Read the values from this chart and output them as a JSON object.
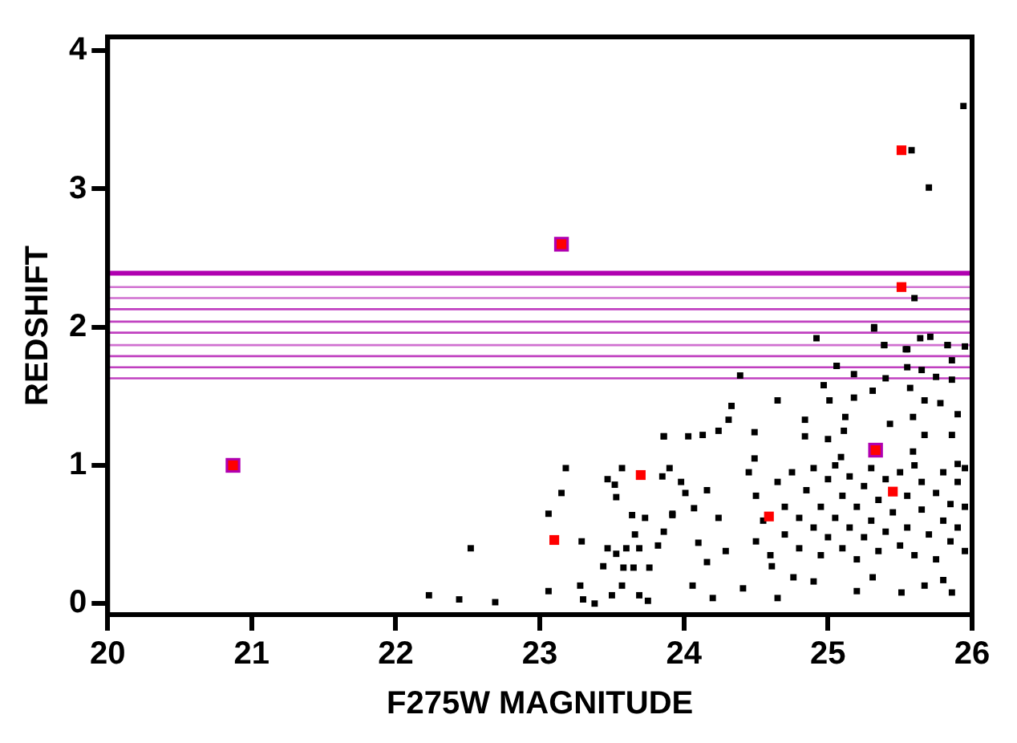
{
  "chart_data": {
    "type": "scatter",
    "xlabel": "F275W MAGNITUDE",
    "ylabel": "REDSHIFT",
    "xlim": [
      20,
      26
    ],
    "ylim": [
      -0.08,
      4.1
    ],
    "xticks": [
      20,
      21,
      22,
      23,
      24,
      25,
      26
    ],
    "yticks": [
      0,
      1,
      2,
      3,
      4
    ],
    "grid": false,
    "legend": false,
    "marker": "square",
    "series": [
      {
        "color": "#000000",
        "x": [
          22.23,
          22.44,
          22.69,
          22.52,
          23.06,
          23.06,
          23.15,
          23.18,
          23.29,
          23.28,
          23.3,
          23.38,
          23.44,
          23.47,
          23.53,
          23.47,
          23.52,
          23.53,
          23.57,
          23.57,
          23.5,
          23.6,
          23.58,
          23.65,
          23.76,
          23.69,
          23.66,
          23.64,
          23.73,
          23.86,
          23.85,
          23.9,
          23.92,
          23.86,
          23.82,
          23.69,
          23.75,
          25.6,
          25.32,
          24.92,
          24.39,
          25.06,
          25.39,
          25.55,
          25.64,
          25.71,
          25.83,
          25.95,
          25.86,
          24.97,
          25.94,
          25.58,
          25.7,
          25.32,
          25.39,
          25.54,
          25.83,
          25.06,
          25.18,
          25.55,
          25.65,
          25.4,
          25.75,
          25.86,
          25.57,
          24.65,
          25.01,
          25.18,
          25.31,
          25.67,
          24.33,
          25.78,
          24.31,
          24.84,
          25.12,
          25.43,
          25.59,
          25.9,
          23.86,
          24.03,
          24.13,
          24.24,
          24.49,
          24.84,
          25.0,
          25.11,
          25.67,
          25.86,
          24.49,
          25.09,
          25.59,
          25.9,
          23.98,
          24.16,
          24.01,
          24.07,
          23.92,
          24.24,
          24.1,
          24.29,
          24.16,
          24.06,
          24.2,
          24.41,
          24.65,
          24.61,
          24.76,
          24.9,
          25.2,
          25.31,
          25.51,
          25.67,
          25.86,
          25.8,
          24.45,
          24.5,
          24.55,
          24.5,
          24.6,
          24.65,
          24.7,
          24.7,
          24.75,
          24.8,
          24.8,
          24.85,
          24.9,
          24.9,
          24.95,
          24.95,
          25.0,
          25.0,
          25.05,
          25.05,
          25.1,
          25.1,
          25.15,
          25.15,
          25.2,
          25.2,
          25.25,
          25.25,
          25.3,
          25.3,
          25.35,
          25.35,
          25.4,
          25.4,
          25.45,
          25.5,
          25.5,
          25.55,
          25.55,
          25.6,
          25.6,
          25.65,
          25.65,
          25.7,
          25.75,
          25.75,
          25.8,
          25.8,
          25.85,
          25.85,
          25.9,
          25.9,
          25.95,
          25.95,
          25.95
        ],
        "values": [
          0.06,
          0.03,
          0.01,
          0.4,
          0.09,
          0.65,
          0.8,
          0.98,
          0.45,
          0.13,
          0.03,
          0.0,
          0.27,
          0.4,
          0.36,
          0.9,
          0.86,
          0.77,
          0.98,
          0.13,
          0.06,
          0.4,
          0.26,
          0.26,
          0.26,
          0.4,
          0.5,
          0.64,
          0.62,
          1.21,
          0.92,
          0.98,
          0.64,
          0.52,
          0.42,
          0.06,
          0.02,
          2.21,
          1.99,
          1.92,
          1.65,
          1.72,
          1.87,
          1.84,
          1.92,
          1.93,
          1.87,
          1.86,
          1.76,
          1.58,
          3.6,
          3.28,
          3.01,
          2.0,
          1.87,
          1.84,
          1.87,
          1.72,
          1.66,
          1.71,
          1.69,
          1.63,
          1.64,
          1.62,
          1.56,
          1.47,
          1.47,
          1.49,
          1.54,
          1.47,
          1.43,
          1.45,
          1.33,
          1.33,
          1.35,
          1.3,
          1.35,
          1.37,
          1.21,
          1.21,
          1.22,
          1.25,
          1.24,
          1.21,
          1.19,
          1.25,
          1.22,
          1.22,
          1.05,
          1.06,
          1.1,
          1.01,
          0.88,
          0.82,
          0.8,
          0.69,
          0.65,
          0.62,
          0.44,
          0.38,
          0.3,
          0.13,
          0.04,
          0.11,
          0.04,
          0.27,
          0.19,
          0.16,
          0.09,
          0.19,
          0.08,
          0.13,
          0.08,
          0.17,
          0.95,
          0.78,
          0.6,
          0.45,
          0.35,
          0.88,
          0.7,
          0.5,
          0.95,
          0.62,
          0.4,
          0.82,
          0.98,
          0.55,
          0.7,
          0.35,
          0.9,
          0.48,
          0.62,
          1.0,
          0.78,
          0.4,
          0.55,
          0.92,
          0.7,
          0.32,
          0.85,
          0.48,
          0.98,
          0.6,
          0.75,
          0.38,
          0.9,
          0.52,
          0.66,
          0.95,
          0.42,
          0.78,
          0.55,
          1.0,
          0.35,
          0.68,
          0.88,
          0.5,
          0.8,
          0.32,
          0.95,
          0.6,
          0.72,
          0.45,
          0.88,
          0.55,
          0.7,
          0.38,
          0.98
        ]
      },
      {
        "color": "#b000b0",
        "x": [
          20.87,
          23.15,
          25.33
        ],
        "values": [
          1.0,
          2.6,
          1.11
        ]
      },
      {
        "color": "#ff0000",
        "x": [
          20.87,
          23.15,
          25.33,
          23.1,
          23.7,
          24.59,
          25.45,
          25.51,
          25.51
        ],
        "values": [
          1.0,
          2.6,
          1.11,
          0.46,
          0.93,
          0.63,
          0.81,
          2.29,
          3.28
        ]
      }
    ],
    "ref_lines": [
      {
        "axis": "y",
        "value": 2.39,
        "color": "#b000b0"
      },
      {
        "axis": "y",
        "value": 2.29,
        "color": "#d070d0"
      },
      {
        "axis": "y",
        "value": 2.21,
        "color": "#d070d0"
      },
      {
        "axis": "y",
        "value": 2.13,
        "color": "#c040c0"
      },
      {
        "axis": "y",
        "value": 2.04,
        "color": "#c040c0"
      },
      {
        "axis": "y",
        "value": 1.96,
        "color": "#c040c0"
      },
      {
        "axis": "y",
        "value": 1.87,
        "color": "#d070d0"
      },
      {
        "axis": "y",
        "value": 1.79,
        "color": "#c040c0"
      },
      {
        "axis": "y",
        "value": 1.71,
        "color": "#c040c0"
      },
      {
        "axis": "y",
        "value": 1.63,
        "color": "#c040c0"
      }
    ]
  }
}
